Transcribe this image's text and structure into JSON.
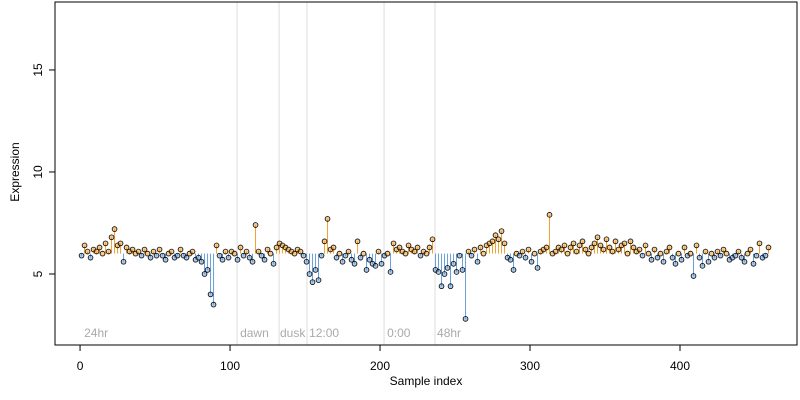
{
  "chart_data": {
    "type": "lollipop",
    "xlabel": "Sample index",
    "ylabel": "Expression",
    "xlim": [
      -16.7,
      478
    ],
    "ylim": [
      1.52,
      18.33
    ],
    "xticks": [
      0,
      100,
      200,
      300,
      400
    ],
    "yticks": [
      5,
      10,
      15
    ],
    "baseline": 6,
    "up_color": "#f0a030",
    "down_color": "#6a9fd8",
    "vlines": [
      104.7,
      132.7,
      151.3,
      202.7,
      236.7
    ],
    "annotations": [
      {
        "x": 2.7,
        "label": "24hr"
      },
      {
        "x": 106.7,
        "label": "dawn"
      },
      {
        "x": 133.3,
        "label": "dusk"
      },
      {
        "x": 152.7,
        "label": "12:00"
      },
      {
        "x": 204.7,
        "label": "0:00"
      },
      {
        "x": 238,
        "label": "48hr"
      }
    ],
    "x": [
      1,
      3,
      5,
      7,
      9,
      11,
      13,
      15,
      17,
      19,
      21,
      23,
      25,
      27,
      29,
      31,
      33,
      35,
      37,
      39,
      41,
      43,
      45,
      47,
      49,
      51,
      53,
      55,
      57,
      59,
      61,
      63,
      65,
      67,
      69,
      71,
      73,
      75,
      77,
      79,
      81,
      83,
      85,
      87,
      89,
      91,
      93,
      95,
      97,
      99,
      101,
      103,
      105,
      107,
      109,
      111,
      113,
      115,
      117,
      119,
      121,
      123,
      125,
      127,
      129,
      131,
      133,
      135,
      137,
      139,
      141,
      143,
      145,
      147,
      149,
      151,
      153,
      155,
      157,
      159,
      161,
      163,
      165,
      167,
      169,
      171,
      173,
      175,
      177,
      179,
      181,
      183,
      185,
      187,
      189,
      191,
      193,
      195,
      197,
      199,
      201,
      203,
      205,
      207,
      209,
      211,
      213,
      215,
      217,
      219,
      221,
      223,
      225,
      227,
      229,
      231,
      233,
      235,
      237,
      239,
      241,
      243,
      245,
      247,
      249,
      251,
      253,
      255,
      257,
      259,
      261,
      263,
      265,
      267,
      269,
      271,
      273,
      275,
      277,
      279,
      281,
      283,
      285,
      287,
      289,
      291,
      293,
      295,
      297,
      299,
      301,
      303,
      305,
      307,
      309,
      311,
      313,
      315,
      317,
      319,
      321,
      323,
      325,
      327,
      329,
      331,
      333,
      335,
      337,
      339,
      341,
      343,
      345,
      347,
      349,
      351,
      353,
      355,
      357,
      359,
      361,
      363,
      365,
      367,
      369,
      371,
      373,
      375,
      377,
      379,
      381,
      383,
      385,
      387,
      389,
      391,
      393,
      395,
      397,
      399,
      401,
      403,
      405,
      407,
      409,
      411,
      413,
      415,
      417,
      419,
      421,
      423,
      425,
      427,
      429,
      431,
      433,
      435,
      437,
      439,
      441,
      443,
      445,
      447,
      449,
      451,
      453,
      455,
      457,
      459
    ],
    "values": [
      5.9,
      6.4,
      6.1,
      5.8,
      6.2,
      6.1,
      6.3,
      6.0,
      6.5,
      6.1,
      6.8,
      7.2,
      6.4,
      6.5,
      5.6,
      6.3,
      6.1,
      6.2,
      6.0,
      6.1,
      5.9,
      6.2,
      6.0,
      5.8,
      6.1,
      5.9,
      6.2,
      5.9,
      5.7,
      6.0,
      6.1,
      5.8,
      5.9,
      6.2,
      5.9,
      5.8,
      6.0,
      6.1,
      5.7,
      5.8,
      5.6,
      5.0,
      5.2,
      4.0,
      3.5,
      6.4,
      5.9,
      5.7,
      6.1,
      5.8,
      6.1,
      6.0,
      5.7,
      6.3,
      5.9,
      6.1,
      5.8,
      5.6,
      7.4,
      6.1,
      5.9,
      5.7,
      6.2,
      6.0,
      5.5,
      6.3,
      6.5,
      6.4,
      6.3,
      6.2,
      6.1,
      6.0,
      6.2,
      6.1,
      5.9,
      5.6,
      5.0,
      4.6,
      5.2,
      4.7,
      5.9,
      6.6,
      7.7,
      6.2,
      6.3,
      5.8,
      6.0,
      5.6,
      5.9,
      6.1,
      5.7,
      5.5,
      6.6,
      5.8,
      6.0,
      5.2,
      5.7,
      5.5,
      5.4,
      6.1,
      5.5,
      5.9,
      6.0,
      5.1,
      6.5,
      6.2,
      6.3,
      6.1,
      6.0,
      6.4,
      6.2,
      6.1,
      6.3,
      5.9,
      6.1,
      6.0,
      6.3,
      6.7,
      5.2,
      5.1,
      4.4,
      5.0,
      5.3,
      4.4,
      5.5,
      5.1,
      5.9,
      5.2,
      2.8,
      6.1,
      5.9,
      6.2,
      5.6,
      6.3,
      6.0,
      6.4,
      6.5,
      6.6,
      6.9,
      6.7,
      7.1,
      6.5,
      5.8,
      5.7,
      5.2,
      6.0,
      5.9,
      6.1,
      5.8,
      6.2,
      5.6,
      6.0,
      5.3,
      6.1,
      6.2,
      6.3,
      7.9,
      6.0,
      6.1,
      6.3,
      6.2,
      6.4,
      6.0,
      6.3,
      6.5,
      6.1,
      6.4,
      6.6,
      6.2,
      6.0,
      6.3,
      6.5,
      6.8,
      6.4,
      6.2,
      6.7,
      6.3,
      6.1,
      6.6,
      6.2,
      6.4,
      6.5,
      6.0,
      6.6,
      6.3,
      6.1,
      6.2,
      5.9,
      6.4,
      6.0,
      5.7,
      6.2,
      5.8,
      6.0,
      5.6,
      6.1,
      6.3,
      5.8,
      5.5,
      6.0,
      5.7,
      6.3,
      5.9,
      6.0,
      4.9,
      6.4,
      5.8,
      5.4,
      6.1,
      5.6,
      6.0,
      5.8,
      6.1,
      5.9,
      6.2,
      6.0,
      5.7,
      5.8,
      5.9,
      6.1,
      5.8,
      5.6,
      6.0,
      6.2,
      5.5,
      5.9,
      6.5,
      5.8,
      5.9,
      6.3
    ]
  }
}
